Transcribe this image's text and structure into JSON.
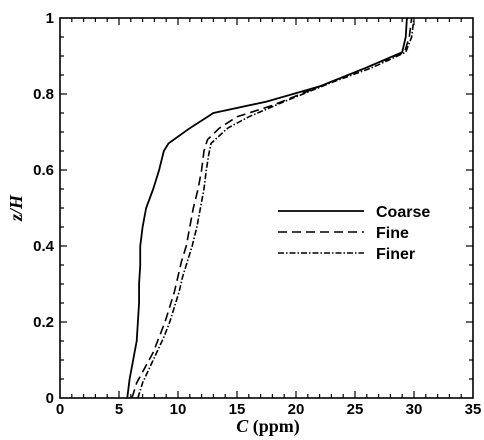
{
  "chart_data": {
    "type": "line",
    "xlabel_symbol": "C",
    "xlabel_unit": " (ppm)",
    "ylabel": "z/H",
    "xlim": [
      0,
      35
    ],
    "ylim": [
      0,
      1
    ],
    "x_ticks": [
      "0",
      "5",
      "10",
      "15",
      "20",
      "25",
      "30",
      "35"
    ],
    "y_ticks": [
      "0",
      "0.2",
      "0.4",
      "0.6",
      "0.8",
      "1"
    ],
    "legend_position": "right-center",
    "grid": false,
    "series": [
      {
        "name": "Coarse",
        "line_style": "solid",
        "color": "#000000",
        "points": [
          [
            5.7,
            0.0
          ],
          [
            5.9,
            0.05
          ],
          [
            6.2,
            0.1
          ],
          [
            6.5,
            0.15
          ],
          [
            6.6,
            0.2
          ],
          [
            6.7,
            0.25
          ],
          [
            6.7,
            0.3
          ],
          [
            6.8,
            0.35
          ],
          [
            6.8,
            0.4
          ],
          [
            7.0,
            0.45
          ],
          [
            7.3,
            0.5
          ],
          [
            7.9,
            0.55
          ],
          [
            8.4,
            0.6
          ],
          [
            8.8,
            0.65
          ],
          [
            9.2,
            0.67
          ],
          [
            11.0,
            0.71
          ],
          [
            13.0,
            0.75
          ],
          [
            17.5,
            0.78
          ],
          [
            22.0,
            0.82
          ],
          [
            26.0,
            0.87
          ],
          [
            29.0,
            0.91
          ],
          [
            29.3,
            0.95
          ],
          [
            29.4,
            1.0
          ]
        ]
      },
      {
        "name": "Fine",
        "line_style": "dashed",
        "color": "#000000",
        "points": [
          [
            6.1,
            0.0
          ],
          [
            6.5,
            0.04
          ],
          [
            7.2,
            0.08
          ],
          [
            7.9,
            0.12
          ],
          [
            8.4,
            0.16
          ],
          [
            8.9,
            0.2
          ],
          [
            9.3,
            0.24
          ],
          [
            9.7,
            0.28
          ],
          [
            10.0,
            0.32
          ],
          [
            10.3,
            0.36
          ],
          [
            10.7,
            0.4
          ],
          [
            11.0,
            0.45
          ],
          [
            11.3,
            0.5
          ],
          [
            11.7,
            0.55
          ],
          [
            12.0,
            0.6
          ],
          [
            12.2,
            0.65
          ],
          [
            12.5,
            0.68
          ],
          [
            13.5,
            0.71
          ],
          [
            15.0,
            0.74
          ],
          [
            18.0,
            0.77
          ],
          [
            22.0,
            0.82
          ],
          [
            26.0,
            0.87
          ],
          [
            29.2,
            0.91
          ],
          [
            29.6,
            0.95
          ],
          [
            29.8,
            1.0
          ]
        ]
      },
      {
        "name": "Finer",
        "line_style": "dash-dot",
        "color": "#000000",
        "points": [
          [
            6.6,
            0.0
          ],
          [
            7.0,
            0.04
          ],
          [
            7.6,
            0.08
          ],
          [
            8.2,
            0.12
          ],
          [
            8.8,
            0.16
          ],
          [
            9.3,
            0.2
          ],
          [
            9.7,
            0.24
          ],
          [
            10.1,
            0.28
          ],
          [
            10.4,
            0.32
          ],
          [
            10.8,
            0.36
          ],
          [
            11.2,
            0.4
          ],
          [
            11.6,
            0.45
          ],
          [
            11.9,
            0.5
          ],
          [
            12.2,
            0.55
          ],
          [
            12.4,
            0.6
          ],
          [
            12.6,
            0.64
          ],
          [
            12.8,
            0.67
          ],
          [
            14.2,
            0.71
          ],
          [
            16.0,
            0.74
          ],
          [
            19.0,
            0.78
          ],
          [
            23.0,
            0.83
          ],
          [
            26.5,
            0.87
          ],
          [
            29.3,
            0.91
          ],
          [
            29.8,
            0.95
          ],
          [
            30.0,
            1.0
          ]
        ]
      }
    ]
  }
}
